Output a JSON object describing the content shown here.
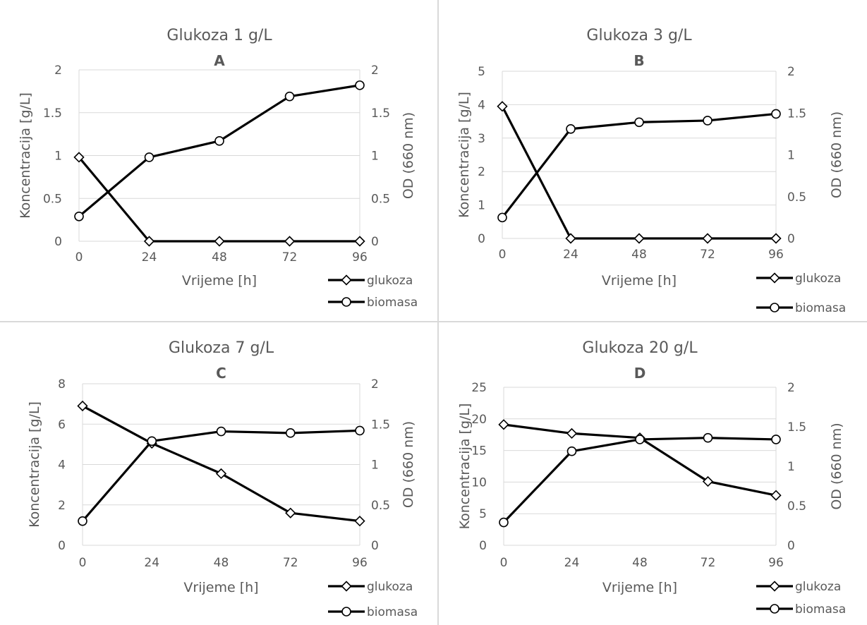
{
  "colors": {
    "line": "#000000",
    "grid": "#d9d9d9",
    "text": "#595959",
    "marker_fill": "#ffffff"
  },
  "chart_data": [
    {
      "type": "line",
      "title": "Glukoza 1 g/L",
      "subtitle": "A",
      "xlabel": "Vrijeme [h]",
      "ylabel": "Koncentracija [g/L]",
      "y2label": "OD (660 nm)",
      "x": [
        0,
        24,
        48,
        72,
        96
      ],
      "x_ticks": [
        "0",
        "24",
        "48",
        "72",
        "96"
      ],
      "ylim": [
        0,
        2
      ],
      "y_ticks": [
        "0",
        "0.5",
        "1",
        "1.5",
        "2"
      ],
      "y2lim": [
        0,
        2
      ],
      "y2_ticks": [
        "0",
        "0.5",
        "1",
        "1.5",
        "2"
      ],
      "grid": true,
      "legend": "bottom-right",
      "series": [
        {
          "name": "glukoza",
          "axis": "left",
          "marker": "diamond",
          "values": [
            0.98,
            0,
            0,
            0,
            0
          ]
        },
        {
          "name": "biomasa",
          "axis": "right",
          "marker": "circle",
          "values": [
            0.29,
            0.98,
            1.17,
            1.69,
            1.82
          ]
        }
      ]
    },
    {
      "type": "line",
      "title": "Glukoza 3 g/L",
      "subtitle": "B",
      "xlabel": "Vrijeme [h]",
      "ylabel": "Koncentracija [g/L]",
      "y2label": "OD (660 nm)",
      "x": [
        0,
        24,
        48,
        72,
        96
      ],
      "x_ticks": [
        "0",
        "24",
        "48",
        "72",
        "96"
      ],
      "ylim": [
        0,
        5
      ],
      "y_ticks": [
        "0",
        "1",
        "2",
        "3",
        "4",
        "5"
      ],
      "y2lim": [
        0,
        2
      ],
      "y2_ticks": [
        "0",
        "0.5",
        "1",
        "1.5",
        "2"
      ],
      "grid": true,
      "legend": "bottom-right",
      "series": [
        {
          "name": "glukoza",
          "axis": "left",
          "marker": "diamond",
          "values": [
            3.95,
            0,
            0,
            0,
            0
          ]
        },
        {
          "name": "biomasa",
          "axis": "right",
          "marker": "circle",
          "values": [
            0.25,
            1.31,
            1.39,
            1.41,
            1.49
          ]
        }
      ]
    },
    {
      "type": "line",
      "title": "Glukoza 7 g/L",
      "subtitle": "C",
      "xlabel": "Vrijeme [h]",
      "ylabel": "Koncentracija [g/L]",
      "y2label": "OD (660 nm)",
      "x": [
        0,
        24,
        48,
        72,
        96
      ],
      "x_ticks": [
        "0",
        "24",
        "48",
        "72",
        "96"
      ],
      "ylim": [
        0,
        8
      ],
      "y_ticks": [
        "0",
        "2",
        "4",
        "6",
        "8"
      ],
      "y2lim": [
        0,
        2
      ],
      "y2_ticks": [
        "0",
        "0.5",
        "1",
        "1.5",
        "2"
      ],
      "grid": true,
      "legend": "bottom-right",
      "series": [
        {
          "name": "glukoza",
          "axis": "left",
          "marker": "diamond",
          "values": [
            6.9,
            5.05,
            3.55,
            1.6,
            1.2
          ]
        },
        {
          "name": "biomasa",
          "axis": "right",
          "marker": "circle",
          "values": [
            0.3,
            1.29,
            1.41,
            1.39,
            1.42
          ]
        }
      ]
    },
    {
      "type": "line",
      "title": "Glukoza 20 g/L",
      "subtitle": "D",
      "xlabel": "Vrijeme [h]",
      "ylabel": "Koncentracija [g/L]",
      "y2label": "OD (660 nm)",
      "x": [
        0,
        24,
        48,
        72,
        96
      ],
      "x_ticks": [
        "0",
        "24",
        "48",
        "72",
        "96"
      ],
      "ylim": [
        0,
        25
      ],
      "y_ticks": [
        "0",
        "5",
        "10",
        "15",
        "20",
        "25"
      ],
      "y2lim": [
        0,
        2
      ],
      "y2_ticks": [
        "0",
        "0.5",
        "1",
        "1.5",
        "2"
      ],
      "grid": true,
      "legend": "bottom-right",
      "series": [
        {
          "name": "glukoza",
          "axis": "left",
          "marker": "diamond",
          "values": [
            19.1,
            17.7,
            17.0,
            10.1,
            7.9
          ]
        },
        {
          "name": "biomasa",
          "axis": "right",
          "marker": "circle",
          "values": [
            0.29,
            1.19,
            1.34,
            1.36,
            1.34
          ]
        }
      ]
    }
  ]
}
